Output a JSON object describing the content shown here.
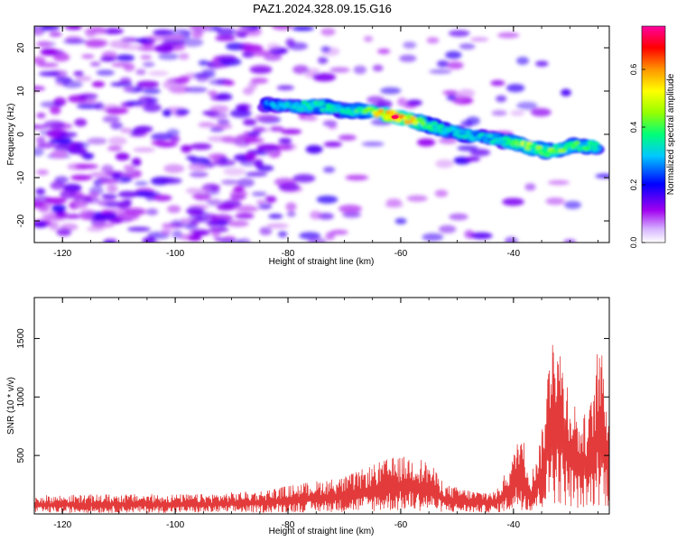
{
  "title": "PAZ1.2024.328.09.15.G16",
  "colors": {
    "snr_line": "#e33b3b",
    "axis": "#000000",
    "background": "#ffffff"
  },
  "chart_data": [
    {
      "type": "heatmap",
      "xlabel": "Height of straight line (km)",
      "ylabel": "Frequency (Hz)",
      "xlim": [
        -125,
        -23
      ],
      "ylim": [
        -25,
        25
      ],
      "x_ticks": [
        -120,
        -100,
        -80,
        -60,
        -40
      ],
      "y_ticks": [
        -20,
        -10,
        0,
        10,
        20
      ],
      "colorbar": {
        "label": "Normalized spectral amplitude",
        "range": [
          0,
          0.75
        ],
        "ticks": [
          0.0,
          0.2,
          0.4,
          0.6
        ],
        "colormap": [
          "#ffffff",
          "#a000f0",
          "#0000ff",
          "#00c8ff",
          "#00ff78",
          "#96ff00",
          "#ffff00",
          "#ff9600",
          "#ff0000",
          "#ff00a0"
        ]
      },
      "ridge": {
        "points": [
          {
            "x": -84,
            "y": 7,
            "amp": 0.22
          },
          {
            "x": -78,
            "y": 6.5,
            "amp": 0.3
          },
          {
            "x": -74,
            "y": 6.5,
            "amp": 0.35
          },
          {
            "x": -70,
            "y": 5.5,
            "amp": 0.3
          },
          {
            "x": -66,
            "y": 5.5,
            "amp": 0.4
          },
          {
            "x": -61,
            "y": 4,
            "amp": 0.72
          },
          {
            "x": -56,
            "y": 2.5,
            "amp": 0.4
          },
          {
            "x": -52,
            "y": 1,
            "amp": 0.3
          },
          {
            "x": -47,
            "y": -0.5,
            "amp": 0.28
          },
          {
            "x": -42,
            "y": -1.5,
            "amp": 0.3
          },
          {
            "x": -38,
            "y": -2.5,
            "amp": 0.45
          },
          {
            "x": -34,
            "y": -4,
            "amp": 0.42
          },
          {
            "x": -29,
            "y": -2.5,
            "amp": 0.38
          },
          {
            "x": -25,
            "y": -3,
            "amp": 0.35
          }
        ]
      },
      "background_noise_amplitude": 0.1
    },
    {
      "type": "line",
      "xlabel": "Height of straight line (km)",
      "ylabel": "SNR (10 * v/v)",
      "xlim": [
        -125,
        -23
      ],
      "ylim": [
        0,
        1850
      ],
      "x_ticks": [
        -120,
        -100,
        -80,
        -60,
        -40
      ],
      "y_ticks": [
        500,
        1000,
        1500
      ],
      "series": [
        {
          "envelope": [
            {
              "x": -125,
              "y": 160
            },
            {
              "x": -110,
              "y": 170
            },
            {
              "x": -95,
              "y": 170
            },
            {
              "x": -85,
              "y": 200
            },
            {
              "x": -78,
              "y": 260
            },
            {
              "x": -70,
              "y": 320
            },
            {
              "x": -65,
              "y": 420
            },
            {
              "x": -62,
              "y": 480
            },
            {
              "x": -58,
              "y": 500
            },
            {
              "x": -55,
              "y": 450
            },
            {
              "x": -52,
              "y": 250
            },
            {
              "x": -47,
              "y": 200
            },
            {
              "x": -43,
              "y": 200
            },
            {
              "x": -40,
              "y": 500
            },
            {
              "x": -39,
              "y": 760
            },
            {
              "x": -38,
              "y": 600
            },
            {
              "x": -37,
              "y": 320
            },
            {
              "x": -35,
              "y": 700
            },
            {
              "x": -34,
              "y": 1200
            },
            {
              "x": -33,
              "y": 1850
            },
            {
              "x": -32,
              "y": 1500
            },
            {
              "x": -30,
              "y": 1100
            },
            {
              "x": -28,
              "y": 800
            },
            {
              "x": -26,
              "y": 1000
            },
            {
              "x": -25,
              "y": 1500
            },
            {
              "x": -24,
              "y": 1300
            },
            {
              "x": -23,
              "y": 900
            }
          ]
        }
      ]
    }
  ]
}
